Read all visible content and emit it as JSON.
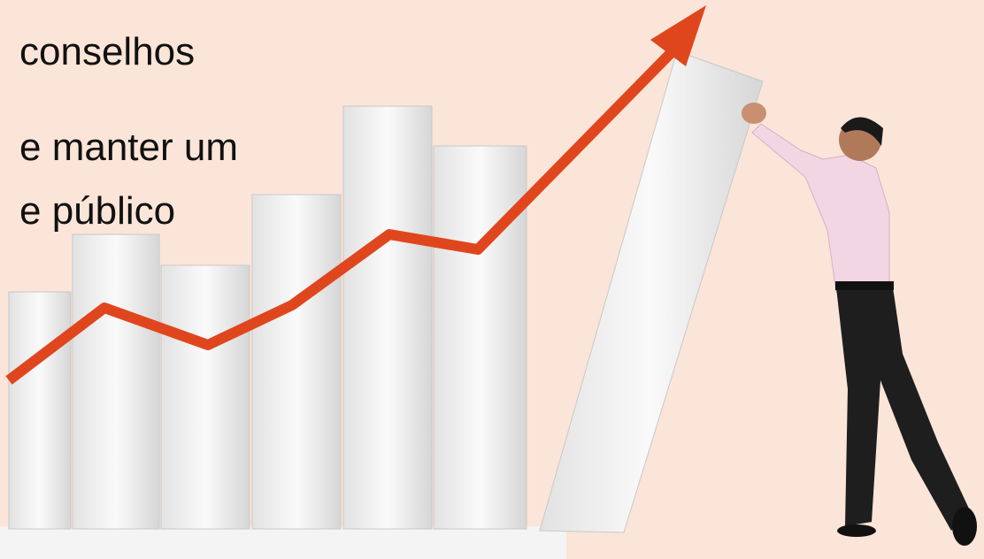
{
  "slide": {
    "text_lines": [
      "conselhos",
      "e manter um",
      "e público"
    ]
  }
}
